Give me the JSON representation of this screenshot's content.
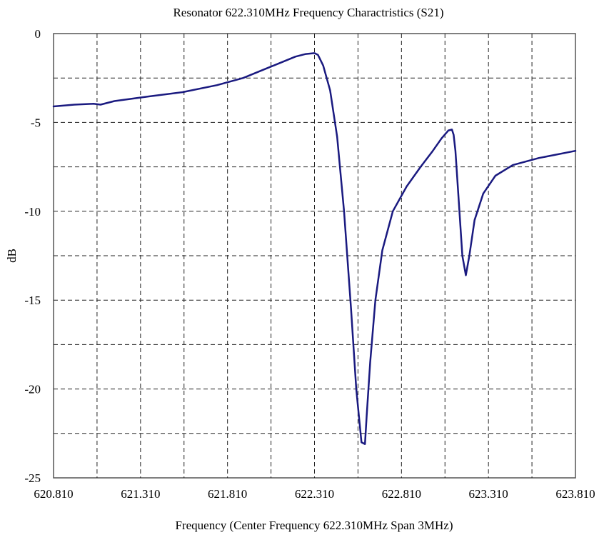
{
  "chart_data": {
    "type": "line",
    "title": "Resonator 622.310MHz Frequency Charactristics (S21)",
    "xlabel": "Frequency (Center Frequency 622.310MHz Span 3MHz)",
    "ylabel": "dB",
    "xlim": [
      620.81,
      623.81
    ],
    "ylim": [
      -25,
      0
    ],
    "x_ticks": [
      "620.810",
      "621.310",
      "621.810",
      "622.310",
      "622.810",
      "623.310",
      "623.810"
    ],
    "x_tick_values": [
      620.81,
      621.31,
      621.81,
      622.31,
      622.81,
      623.31,
      623.81
    ],
    "y_ticks": [
      "0",
      "-5",
      "-10",
      "-15",
      "-20",
      "-25"
    ],
    "y_tick_values": [
      0,
      -5,
      -10,
      -15,
      -20,
      -25
    ],
    "x_minor_grid": [
      621.06,
      621.56,
      622.06,
      622.56,
      623.06,
      623.56
    ],
    "y_minor_grid": [
      -2.5,
      -7.5,
      -12.5,
      -17.5,
      -22.5
    ],
    "grid": true,
    "grid_style": "dashed",
    "series": [
      {
        "color": "#1a1a80",
        "x": [
          620.81,
          620.93,
          621.04,
          621.08,
          621.16,
          621.35,
          621.55,
          621.75,
          621.9,
          622.0,
          622.1,
          622.2,
          622.26,
          622.31,
          622.33,
          622.36,
          622.4,
          622.44,
          622.48,
          622.52,
          622.55,
          622.58,
          622.6,
          622.61,
          622.63,
          622.66,
          622.7,
          622.76,
          622.84,
          622.92,
          622.99,
          623.04,
          623.08,
          623.1,
          623.11,
          623.12,
          623.14,
          623.16,
          623.18,
          623.2,
          623.23,
          623.28,
          623.35,
          623.45,
          623.6,
          623.81
        ],
        "y": [
          -4.1,
          -4.0,
          -3.95,
          -4.0,
          -3.8,
          -3.55,
          -3.3,
          -2.9,
          -2.5,
          -2.1,
          -1.7,
          -1.3,
          -1.15,
          -1.1,
          -1.2,
          -1.8,
          -3.2,
          -5.8,
          -10.0,
          -15.5,
          -20.0,
          -23.0,
          -23.1,
          -21.5,
          -18.5,
          -15.0,
          -12.2,
          -10.0,
          -8.6,
          -7.5,
          -6.6,
          -5.9,
          -5.45,
          -5.4,
          -5.7,
          -6.6,
          -9.5,
          -12.5,
          -13.6,
          -12.5,
          -10.5,
          -9.0,
          -8.0,
          -7.4,
          -7.0,
          -6.6
        ]
      }
    ]
  }
}
